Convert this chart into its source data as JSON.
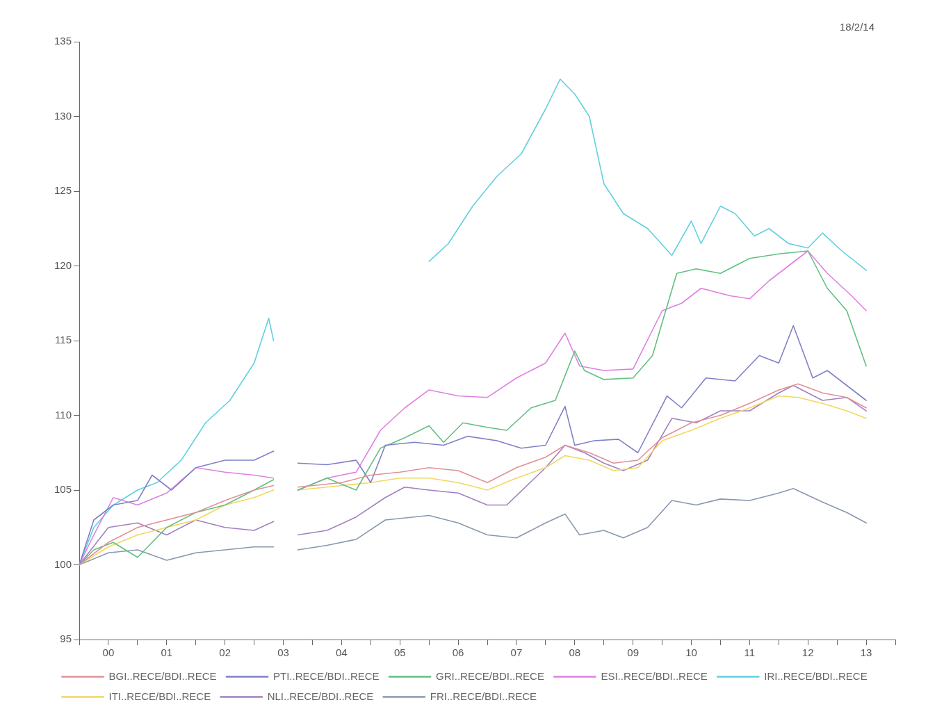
{
  "chart_data": {
    "type": "line",
    "annotations": [
      "18/2/14"
    ],
    "ylim": [
      95,
      135
    ],
    "yticks": [
      95,
      100,
      105,
      110,
      115,
      120,
      125,
      130,
      135
    ],
    "xlim": [
      "2000-01-01",
      "2014-01-01"
    ],
    "xticks": [
      {
        "value": "2000-01-01",
        "label": null
      },
      {
        "value": "2000-07-01",
        "label": "00"
      },
      {
        "value": "2001-01-01",
        "label": null
      },
      {
        "value": "2001-07-01",
        "label": "01"
      },
      {
        "value": "2002-01-01",
        "label": null
      },
      {
        "value": "2002-07-01",
        "label": "02"
      },
      {
        "value": "2003-01-01",
        "label": null
      },
      {
        "value": "2003-07-01",
        "label": "03"
      },
      {
        "value": "2004-01-01",
        "label": null
      },
      {
        "value": "2004-07-01",
        "label": "04"
      },
      {
        "value": "2005-01-01",
        "label": null
      },
      {
        "value": "2005-07-01",
        "label": "05"
      },
      {
        "value": "2006-01-01",
        "label": null
      },
      {
        "value": "2006-07-01",
        "label": "06"
      },
      {
        "value": "2007-01-01",
        "label": null
      },
      {
        "value": "2007-07-01",
        "label": "07"
      },
      {
        "value": "2008-01-01",
        "label": null
      },
      {
        "value": "2008-07-01",
        "label": "08"
      },
      {
        "value": "2009-01-01",
        "label": null
      },
      {
        "value": "2009-07-01",
        "label": "09"
      },
      {
        "value": "2010-01-01",
        "label": null
      },
      {
        "value": "2010-07-01",
        "label": "10"
      },
      {
        "value": "2011-01-01",
        "label": null
      },
      {
        "value": "2011-07-01",
        "label": "11"
      },
      {
        "value": "2012-01-01",
        "label": null
      },
      {
        "value": "2012-07-01",
        "label": "12"
      },
      {
        "value": "2013-01-01",
        "label": null
      },
      {
        "value": "2013-07-01",
        "label": "13"
      },
      {
        "value": "2014-01-01",
        "label": null
      }
    ],
    "grid": false,
    "legend": "bottom",
    "marker": "none",
    "line_style": "solid",
    "series": [
      {
        "name": "BGI..RECE/BDI..RECE",
        "color": "#e09098",
        "x": [
          "2000-01",
          "2000-07",
          "2001-01",
          "2001-07",
          "2002-01",
          "2002-07",
          "2003-01",
          "2003-05",
          "2003-08",
          "2003-10",
          "2004-07",
          "2005-01",
          "2005-07",
          "2006-01",
          "2006-07",
          "2007-01",
          "2007-07",
          "2008-01",
          "2008-05",
          "2008-10",
          "2009-03",
          "2009-08",
          "2010-01",
          "2010-07",
          "2011-01",
          "2011-07",
          "2012-01",
          "2012-05",
          "2012-10",
          "2013-03",
          "2013-07"
        ],
        "values": [
          100,
          101.5,
          102.5,
          103,
          103.5,
          104.3,
          105,
          105.3,
          null,
          105.2,
          105.5,
          106,
          106.2,
          106.5,
          106.3,
          105.5,
          106.5,
          107.2,
          108,
          107.5,
          106.8,
          107,
          108.5,
          109.5,
          110,
          110.8,
          111.7,
          112.1,
          111.5,
          111.2,
          110.5
        ]
      },
      {
        "name": "PTI..RECE/BDI..RECE",
        "color": "#8080c8",
        "x": [
          "2000-01",
          "2000-04",
          "2000-08",
          "2001-01",
          "2001-04",
          "2001-08",
          "2002-01",
          "2002-07",
          "2003-01",
          "2003-05",
          "2003-08",
          "2003-10",
          "2004-04",
          "2004-10",
          "2005-01",
          "2005-04",
          "2005-10",
          "2006-04",
          "2006-09",
          "2007-03",
          "2007-08",
          "2008-01",
          "2008-05",
          "2008-07",
          "2008-11",
          "2009-04",
          "2009-08",
          "2010-02",
          "2010-05",
          "2010-10",
          "2011-04",
          "2011-09",
          "2012-01",
          "2012-04",
          "2012-08",
          "2012-11",
          "2013-03",
          "2013-07"
        ],
        "values": [
          100,
          103,
          104,
          104.3,
          106,
          105,
          106.5,
          107,
          107,
          107.6,
          null,
          106.8,
          106.7,
          107,
          105.5,
          108,
          108.2,
          108,
          108.6,
          108.3,
          107.8,
          108,
          110.6,
          108,
          108.3,
          108.4,
          107.5,
          111.3,
          110.5,
          112.5,
          112.3,
          114,
          113.5,
          116,
          112.5,
          113,
          112,
          111
        ]
      },
      {
        "name": "GRI..RECE/BDI..RECE",
        "color": "#60c080",
        "x": [
          "2000-01",
          "2000-04",
          "2000-08",
          "2001-01",
          "2001-07",
          "2002-01",
          "2002-07",
          "2003-01",
          "2003-05",
          "2003-08",
          "2003-10",
          "2004-04",
          "2004-10",
          "2005-03",
          "2005-08",
          "2006-01",
          "2006-04",
          "2006-08",
          "2007-01",
          "2007-05",
          "2007-10",
          "2008-03",
          "2008-07",
          "2008-09",
          "2009-01",
          "2009-07",
          "2009-11",
          "2010-04",
          "2010-08",
          "2011-01",
          "2011-07",
          "2012-01",
          "2012-07",
          "2012-11",
          "2013-03",
          "2013-07"
        ],
        "values": [
          100,
          101,
          101.5,
          100.5,
          102.5,
          103.5,
          104,
          105,
          105.7,
          null,
          105,
          105.8,
          105,
          107.8,
          108.5,
          109.3,
          108.2,
          109.5,
          109.2,
          109,
          110.5,
          111,
          114.3,
          113,
          112.4,
          112.5,
          114,
          119.5,
          119.8,
          119.5,
          120.5,
          120.8,
          121,
          118.5,
          117,
          113.3
        ]
      },
      {
        "name": "ESI..RECE/BDI..RECE",
        "color": "#e080e0",
        "x": [
          "2000-01",
          "2000-04",
          "2000-08",
          "2001-01",
          "2001-07",
          "2002-01",
          "2002-07",
          "2003-01",
          "2003-05",
          "2003-08",
          "2003-10",
          "2004-04",
          "2004-10",
          "2005-03",
          "2005-08",
          "2006-01",
          "2006-07",
          "2007-01",
          "2007-07",
          "2008-01",
          "2008-05",
          "2008-08",
          "2009-01",
          "2009-07",
          "2010-01",
          "2010-05",
          "2010-09",
          "2011-03",
          "2011-07",
          "2011-11",
          "2012-03",
          "2012-07",
          "2012-11",
          "2013-04",
          "2013-07"
        ],
        "values": [
          100,
          102,
          104.5,
          104,
          104.8,
          106.5,
          106.2,
          106,
          105.8,
          null,
          105,
          105.8,
          106.2,
          109,
          110.5,
          111.7,
          111.3,
          111.2,
          112.5,
          113.5,
          115.5,
          113.3,
          113,
          113.1,
          117,
          117.5,
          118.5,
          118,
          117.8,
          119,
          120,
          121,
          119.5,
          118,
          117
        ]
      },
      {
        "name": "IRI..RECE/BDI..RECE",
        "color": "#60d0e0",
        "x": [
          "2000-01",
          "2000-04",
          "2000-08",
          "2001-01",
          "2001-05",
          "2001-10",
          "2002-03",
          "2002-08",
          "2003-01",
          "2003-04",
          "2003-05",
          "2003-08",
          "2006-01",
          "2006-05",
          "2006-10",
          "2007-03",
          "2007-08",
          "2008-01",
          "2008-04",
          "2008-07",
          "2008-10",
          "2009-01",
          "2009-05",
          "2009-10",
          "2010-03",
          "2010-07",
          "2010-09",
          "2011-01",
          "2011-04",
          "2011-08",
          "2011-11",
          "2012-03",
          "2012-07",
          "2012-10",
          "2013-02",
          "2013-07"
        ],
        "values": [
          100,
          102.5,
          104,
          105,
          105.5,
          107,
          109.5,
          111,
          113.5,
          116.5,
          115,
          null,
          120.3,
          121.5,
          124,
          126,
          127.5,
          130.5,
          132.5,
          131.5,
          130,
          125.5,
          123.5,
          122.5,
          120.7,
          123,
          121.5,
          124,
          123.5,
          122,
          122.5,
          121.5,
          121.2,
          122.2,
          121,
          119.7
        ]
      },
      {
        "name": "ITI..RECE/BDI..RECE",
        "color": "#f0d860",
        "x": [
          "2000-01",
          "2000-07",
          "2001-01",
          "2001-07",
          "2002-01",
          "2002-07",
          "2003-01",
          "2003-05",
          "2003-08",
          "2003-10",
          "2004-07",
          "2005-01",
          "2005-07",
          "2006-01",
          "2006-07",
          "2007-01",
          "2007-07",
          "2008-01",
          "2008-05",
          "2008-10",
          "2009-03",
          "2009-08",
          "2010-01",
          "2010-07",
          "2011-01",
          "2011-07",
          "2012-01",
          "2012-05",
          "2012-10",
          "2013-03",
          "2013-07"
        ],
        "values": [
          100,
          101.2,
          102,
          102.5,
          103,
          104,
          104.5,
          105,
          null,
          105,
          105.3,
          105.5,
          105.8,
          105.8,
          105.5,
          105,
          105.8,
          106.5,
          107.3,
          107,
          106.3,
          106.5,
          108.3,
          109,
          109.8,
          110.5,
          111.3,
          111.2,
          110.8,
          110.3,
          109.8
        ]
      },
      {
        "name": "NLI..RECE/BDI..RECE",
        "color": "#a080c0",
        "x": [
          "2000-01",
          "2000-07",
          "2001-01",
          "2001-07",
          "2002-01",
          "2002-07",
          "2003-01",
          "2003-05",
          "2003-08",
          "2003-10",
          "2004-04",
          "2004-10",
          "2005-04",
          "2005-08",
          "2006-01",
          "2006-07",
          "2007-01",
          "2007-05",
          "2008-01",
          "2008-05",
          "2008-09",
          "2009-01",
          "2009-05",
          "2009-10",
          "2010-03",
          "2010-08",
          "2011-01",
          "2011-07",
          "2012-01",
          "2012-04",
          "2012-10",
          "2013-03",
          "2013-07"
        ],
        "values": [
          100,
          102.5,
          102.8,
          102,
          103,
          102.5,
          102.3,
          102.9,
          null,
          102,
          102.3,
          103.2,
          104.5,
          105.2,
          105,
          104.8,
          104,
          104,
          106.5,
          108,
          107.5,
          106.8,
          106.3,
          107,
          109.8,
          109.5,
          110.3,
          110.3,
          111.5,
          112,
          111,
          111.2,
          110.3
        ]
      },
      {
        "name": "FRI..RECE/BDI..RECE",
        "color": "#8898b0",
        "x": [
          "2000-01",
          "2000-07",
          "2001-01",
          "2001-07",
          "2002-01",
          "2002-07",
          "2003-01",
          "2003-05",
          "2003-08",
          "2003-10",
          "2004-04",
          "2004-10",
          "2005-04",
          "2006-01",
          "2006-07",
          "2007-01",
          "2007-07",
          "2008-01",
          "2008-05",
          "2008-08",
          "2009-01",
          "2009-05",
          "2009-10",
          "2010-03",
          "2010-08",
          "2011-01",
          "2011-07",
          "2012-01",
          "2012-04",
          "2012-10",
          "2013-03",
          "2013-07"
        ],
        "values": [
          100,
          100.8,
          101,
          100.3,
          100.8,
          101,
          101.2,
          101.2,
          null,
          101,
          101.3,
          101.7,
          103,
          103.3,
          102.8,
          102,
          101.8,
          102.8,
          103.4,
          102,
          102.3,
          101.8,
          102.5,
          104.3,
          104,
          104.4,
          104.3,
          104.8,
          105.1,
          104.2,
          103.5,
          102.8
        ]
      }
    ]
  }
}
